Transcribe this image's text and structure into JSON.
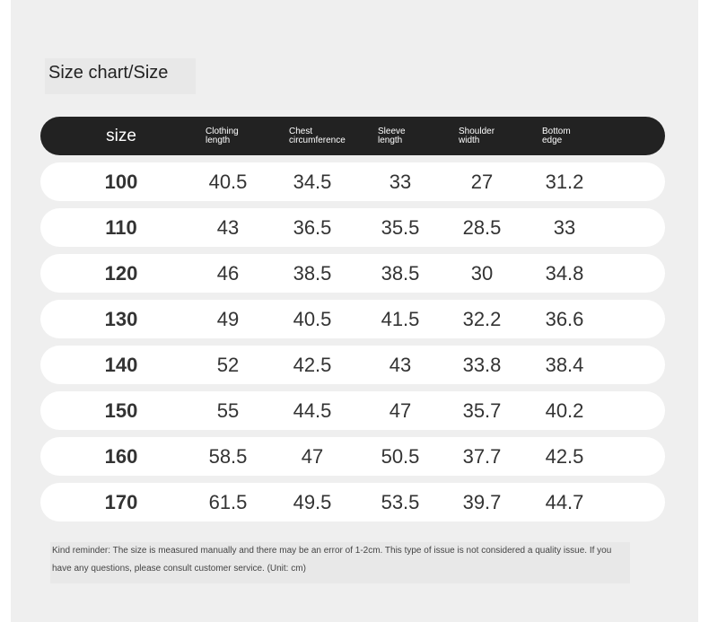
{
  "header": {
    "title": "Size chart/Size"
  },
  "table": {
    "columns": [
      "size",
      "Clothing length",
      "Chest circumference",
      "Sleeve length",
      "Shoulder width",
      "Bottom edge"
    ],
    "rows": [
      [
        "100",
        "40.5",
        "34.5",
        "33",
        "27",
        "31.2"
      ],
      [
        "110",
        "43",
        "36.5",
        "35.5",
        "28.5",
        "33"
      ],
      [
        "120",
        "46",
        "38.5",
        "38.5",
        "30",
        "34.8"
      ],
      [
        "130",
        "49",
        "40.5",
        "41.5",
        "32.2",
        "36.6"
      ],
      [
        "140",
        "52",
        "42.5",
        "43",
        "33.8",
        "38.4"
      ],
      [
        "150",
        "55",
        "44.5",
        "47",
        "35.7",
        "40.2"
      ],
      [
        "160",
        "58.5",
        "47",
        "50.5",
        "37.7",
        "42.5"
      ],
      [
        "170",
        "61.5",
        "49.5",
        "53.5",
        "39.7",
        "44.7"
      ]
    ]
  },
  "footer": {
    "note": "Kind reminder: The size is measured manually and there may be an error of 1-2cm. This type of issue is not considered a quality issue. If you have any questions, please consult customer service. (Unit: cm)"
  }
}
